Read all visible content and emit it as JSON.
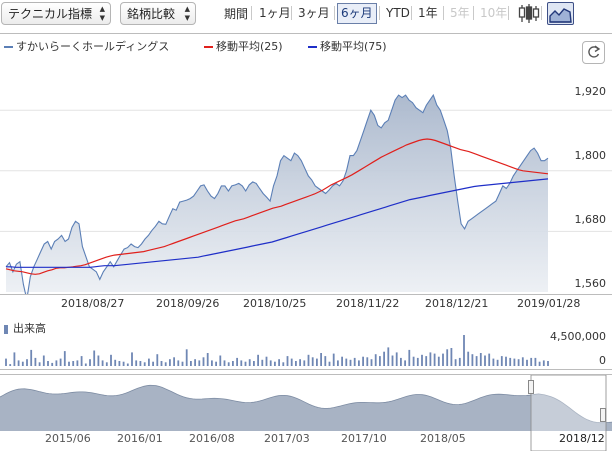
{
  "toolbar": {
    "technical_label": "テクニカル指標",
    "compare_label": "銘柄比較",
    "period_label": "期間",
    "periods": [
      {
        "label": "1ヶ月",
        "state": "normal"
      },
      {
        "label": "3ヶ月",
        "state": "normal"
      },
      {
        "label": "6ヶ月",
        "state": "active"
      },
      {
        "label": "YTD",
        "state": "normal"
      },
      {
        "label": "1年",
        "state": "normal"
      },
      {
        "label": "5年",
        "state": "disabled"
      },
      {
        "label": "10年",
        "state": "disabled"
      }
    ],
    "chart_type_icons": [
      "candlestick-icon",
      "area-chart-icon"
    ]
  },
  "legend": {
    "price": "すかいらーくホールディングス",
    "ma25": "移動平均(25)",
    "ma75": "移動平均(75)"
  },
  "refresh_icon": "refresh-icon",
  "colors": {
    "price_line": "#5b7fb6",
    "price_fill": "#c9d3e0",
    "ma25": "#e0201c",
    "ma75": "#1f2fc8",
    "volume": "#6f87b4",
    "active_border": "#6a7fa8"
  },
  "volume": {
    "label": "出来高",
    "ticks": [
      "4,500,000",
      "0"
    ]
  },
  "navigator": {
    "labels": [
      "2015/06",
      "2016/01",
      "2016/08",
      "2017/03",
      "2017/10",
      "2018/05",
      "2018/12"
    ]
  },
  "chart_data": {
    "type": "line",
    "x_labels": [
      "2018/08/27",
      "2018/09/26",
      "2018/10/25",
      "2018/11/22",
      "2018/12/21",
      "2019/01/28"
    ],
    "y_ticks": [
      "1,920",
      "1,800",
      "1,680",
      "1,560"
    ],
    "ylim": [
      1560,
      1960
    ],
    "grid": true,
    "legend_position": "top-left",
    "series": [
      {
        "name": "すかいらーくホールディングス",
        "values": [
          1610,
          1618,
          1600,
          1615,
          1620,
          1575,
          1545,
          1590,
          1610,
          1625,
          1640,
          1655,
          1660,
          1645,
          1660,
          1665,
          1672,
          1660,
          1665,
          1688,
          1700,
          1695,
          1650,
          1630,
          1610,
          1605,
          1600,
          1585,
          1600,
          1610,
          1620,
          1610,
          1622,
          1634,
          1645,
          1648,
          1655,
          1650,
          1648,
          1655,
          1665,
          1672,
          1682,
          1690,
          1700,
          1695,
          1694,
          1710,
          1725,
          1722,
          1738,
          1740,
          1742,
          1745,
          1750,
          1760,
          1770,
          1772,
          1760,
          1750,
          1745,
          1755,
          1770,
          1770,
          1760,
          1770,
          1772,
          1775,
          1770,
          1760,
          1772,
          1778,
          1775,
          1765,
          1755,
          1748,
          1740,
          1770,
          1790,
          1820,
          1830,
          1825,
          1820,
          1835,
          1830,
          1820,
          1805,
          1790,
          1782,
          1770,
          1765,
          1760,
          1755,
          1762,
          1770,
          1775,
          1770,
          1780,
          1800,
          1830,
          1830,
          1840,
          1860,
          1880,
          1900,
          1920,
          1910,
          1890,
          1885,
          1895,
          1900,
          1920,
          1940,
          1950,
          1945,
          1950,
          1940,
          1935,
          1925,
          1920,
          1915,
          1930,
          1940,
          1950,
          1930,
          1920,
          1900,
          1880,
          1845,
          1790,
          1740,
          1695,
          1685,
          1700,
          1705,
          1710,
          1715,
          1720,
          1725,
          1730,
          1735,
          1740,
          1755,
          1770,
          1765,
          1775,
          1790,
          1800,
          1810,
          1820,
          1830,
          1840,
          1845,
          1835,
          1820,
          1820,
          1825
        ]
      },
      {
        "name": "移動平均(25)",
        "values": [
          1606,
          1604,
          1602,
          1601,
          1600,
          1598,
          1596,
          1595,
          1596,
          1599,
          1602,
          1604,
          1607,
          1608,
          1608,
          1609,
          1610,
          1611,
          1612,
          1614,
          1617,
          1620,
          1623,
          1626,
          1629,
          1631,
          1633,
          1634,
          1635,
          1636,
          1637,
          1638,
          1639,
          1640,
          1642,
          1644,
          1646,
          1648,
          1650,
          1653,
          1656,
          1659,
          1662,
          1665,
          1668,
          1671,
          1674,
          1677,
          1680,
          1683,
          1686,
          1689,
          1692,
          1695,
          1698,
          1701,
          1703,
          1705,
          1708,
          1711,
          1714,
          1717,
          1720,
          1723,
          1726,
          1728,
          1730,
          1733,
          1736,
          1739,
          1742,
          1745,
          1748,
          1751,
          1754,
          1758,
          1762,
          1767,
          1772,
          1776,
          1780,
          1784,
          1788,
          1792,
          1797,
          1802,
          1807,
          1812,
          1817,
          1822,
          1827,
          1831,
          1835,
          1839,
          1843,
          1847,
          1851,
          1854,
          1857,
          1860,
          1862,
          1863,
          1862,
          1860,
          1857,
          1854,
          1851,
          1848,
          1845,
          1842,
          1840,
          1838,
          1835,
          1832,
          1829,
          1826,
          1823,
          1820,
          1817,
          1814,
          1811,
          1808,
          1805,
          1802,
          1800,
          1799,
          1798,
          1797,
          1796,
          1795,
          1794
        ]
      },
      {
        "name": "移動平均(75)",
        "values": [
          1610,
          1610,
          1609,
          1609,
          1609,
          1609,
          1609,
          1609,
          1609,
          1609,
          1609,
          1609,
          1609,
          1609,
          1609,
          1609,
          1609,
          1609,
          1610,
          1611,
          1612,
          1612,
          1612,
          1613,
          1614,
          1615,
          1616,
          1617,
          1618,
          1619,
          1620,
          1621,
          1622,
          1623,
          1624,
          1625,
          1626,
          1627,
          1628,
          1629,
          1631,
          1633,
          1635,
          1637,
          1639,
          1641,
          1643,
          1645,
          1647,
          1649,
          1651,
          1653,
          1655,
          1657,
          1659,
          1662,
          1665,
          1668,
          1671,
          1674,
          1677,
          1680,
          1683,
          1686,
          1689,
          1692,
          1695,
          1698,
          1701,
          1704,
          1707,
          1710,
          1713,
          1716,
          1719,
          1722,
          1725,
          1728,
          1731,
          1734,
          1737,
          1740,
          1743,
          1745,
          1747,
          1749,
          1751,
          1753,
          1755,
          1757,
          1759,
          1761,
          1763,
          1765,
          1767,
          1769,
          1770,
          1771,
          1772,
          1773,
          1774,
          1775,
          1776,
          1777,
          1778,
          1779,
          1780,
          1781,
          1782,
          1783,
          1784
        ]
      }
    ],
    "volume": {
      "ymax": 5000000,
      "values": [
        1200000,
        300000,
        2200000,
        900000,
        700000,
        1100000,
        2600000,
        1300000,
        600000,
        1700000,
        800000,
        500000,
        900000,
        1200000,
        2400000,
        700000,
        800000,
        900000,
        1600000,
        400000,
        1100000,
        2500000,
        1700000,
        900000,
        600000,
        1800000,
        1000000,
        800000,
        700000,
        400000,
        2200000,
        900000,
        800000,
        600000,
        1200000,
        700000,
        1900000,
        800000,
        600000,
        1100000,
        1400000,
        900000,
        700000,
        2700000,
        800000,
        1100000,
        900000,
        1400000,
        2100000,
        900000,
        700000,
        1700000,
        900000,
        600000,
        800000,
        1300000,
        900000,
        700000,
        1100000,
        800000,
        1800000,
        1000000,
        1500000,
        900000,
        700000,
        1100000,
        600000,
        1600000,
        1200000,
        800000,
        1100000,
        900000,
        1800000,
        1400000,
        1200000,
        2100000,
        1600000,
        700000,
        2000000,
        900000,
        1500000,
        1200000,
        1000000,
        1300000,
        900000,
        1500000,
        1400000,
        1100000,
        1900000,
        1600000,
        2300000,
        3000000,
        1700000,
        2200000,
        1300000,
        900000,
        2600000,
        1500000,
        1300000,
        1800000,
        1600000,
        2200000,
        2000000,
        1500000,
        2000000,
        2700000,
        2900000,
        1100000,
        1300000,
        5000000,
        2300000,
        1900000,
        1600000,
        2100000,
        1700000,
        2000000,
        1200000,
        1000000,
        1600000,
        1500000,
        1300000,
        1200000,
        1100000,
        1400000,
        1000000,
        1300000,
        1300000,
        700000,
        900000,
        800000
      ]
    }
  }
}
